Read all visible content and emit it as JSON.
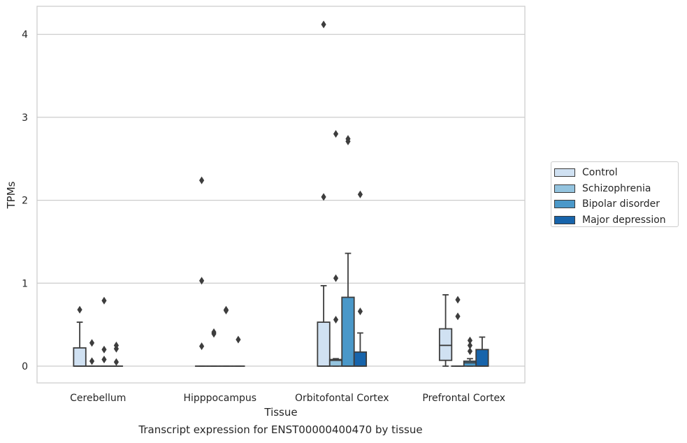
{
  "caption": "Transcript expression for ENST00000400470 by tissue",
  "chart_data": {
    "type": "box",
    "xlabel": "Tissue",
    "ylabel": "TPMs",
    "ylim": [
      -0.2,
      4.32
    ],
    "yticks": [
      0,
      1,
      2,
      3,
      4
    ],
    "grid": true,
    "legend_position": "right",
    "categories": [
      "Cerebellum",
      "Hipppocampus",
      "Orbitofontal Cortex",
      "Prefrontal Cortex"
    ],
    "series": [
      {
        "name": "Control",
        "color": "#d0e1f2",
        "boxes": [
          {
            "q1": 0,
            "median": 0,
            "q3": 0.22,
            "whislo": 0,
            "whishi": 0.53,
            "fliers": [
              0.68
            ]
          },
          {
            "q1": 0,
            "median": 0,
            "q3": 0,
            "whislo": 0,
            "whishi": 0,
            "fliers": [
              2.24,
              1.03,
              0.24
            ]
          },
          {
            "q1": 0,
            "median": 0,
            "q3": 0.53,
            "whislo": 0,
            "whishi": 0.97,
            "fliers": [
              4.12,
              2.04
            ]
          },
          {
            "q1": 0.07,
            "median": 0.25,
            "q3": 0.45,
            "whislo": 0,
            "whishi": 0.86,
            "fliers": []
          }
        ]
      },
      {
        "name": "Schizophrenia",
        "color": "#94c4df",
        "boxes": [
          {
            "q1": 0,
            "median": 0,
            "q3": 0,
            "whislo": 0,
            "whishi": 0,
            "fliers": [
              0.28,
              0.06
            ]
          },
          {
            "q1": 0,
            "median": 0,
            "q3": 0,
            "whislo": 0,
            "whishi": 0,
            "fliers": [
              0.41,
              0.39
            ]
          },
          {
            "q1": 0,
            "median": 0.07,
            "q3": 0.08,
            "whislo": 0,
            "whishi": 0.09,
            "fliers": [
              2.8,
              1.06,
              0.56
            ]
          },
          {
            "q1": 0,
            "median": 0,
            "q3": 0,
            "whislo": 0,
            "whishi": 0,
            "fliers": [
              0.8,
              0.6
            ]
          }
        ]
      },
      {
        "name": "Bipolar disorder",
        "color": "#4a98c9",
        "boxes": [
          {
            "q1": 0,
            "median": 0,
            "q3": 0,
            "whislo": 0,
            "whishi": 0,
            "fliers": [
              0.79,
              0.2,
              0.08
            ]
          },
          {
            "q1": 0,
            "median": 0,
            "q3": 0,
            "whislo": 0,
            "whishi": 0,
            "fliers": [
              0.68,
              0.67
            ]
          },
          {
            "q1": 0,
            "median": 0,
            "q3": 0.83,
            "whislo": 0,
            "whishi": 1.36,
            "fliers": [
              2.74,
              2.71
            ]
          },
          {
            "q1": 0,
            "median": 0.04,
            "q3": 0.06,
            "whislo": 0,
            "whishi": 0.09,
            "fliers": [
              0.31,
              0.25,
              0.18
            ]
          }
        ]
      },
      {
        "name": "Major depression",
        "color": "#1764ab",
        "boxes": [
          {
            "q1": 0,
            "median": 0,
            "q3": 0,
            "whislo": 0,
            "whishi": 0,
            "fliers": [
              0.25,
              0.21,
              0.05
            ]
          },
          {
            "q1": 0,
            "median": 0,
            "q3": 0,
            "whislo": 0,
            "whishi": 0,
            "fliers": [
              0.32
            ]
          },
          {
            "q1": 0,
            "median": 0,
            "q3": 0.17,
            "whislo": 0,
            "whishi": 0.4,
            "fliers": [
              2.07,
              0.66
            ]
          },
          {
            "q1": 0,
            "median": 0,
            "q3": 0.2,
            "whislo": 0,
            "whishi": 0.35,
            "fliers": []
          }
        ]
      }
    ]
  }
}
